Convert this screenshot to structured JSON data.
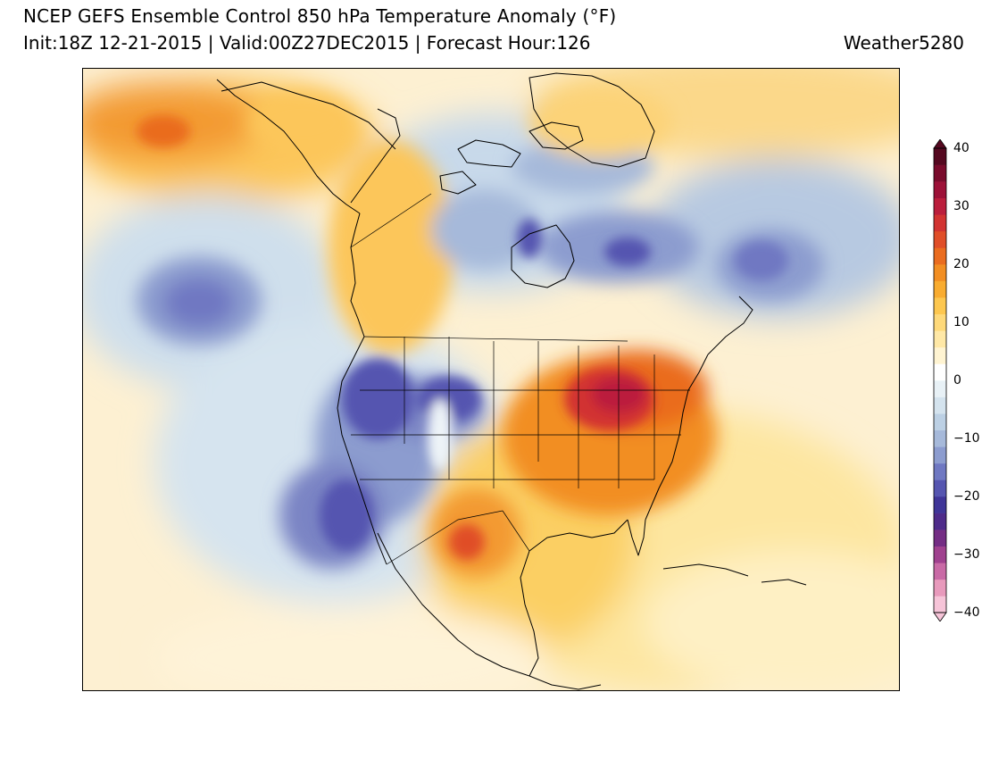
{
  "header": {
    "title": "NCEP GEFS Ensemble Control 850 hPa Temperature Anomaly (°F)",
    "subtitle": "Init:18Z 12-21-2015 | Valid:00Z27DEC2015 | Forecast Hour:126",
    "credit": "Weather5280"
  },
  "colorbar": {
    "labels": [
      "40",
      "30",
      "20",
      "10",
      "0",
      "−10",
      "−20",
      "−30",
      "−40"
    ],
    "colors": [
      "#f6c4d8",
      "#e89abc",
      "#c96aa6",
      "#a0418f",
      "#742d84",
      "#4e2b8a",
      "#3f3598",
      "#5555b0",
      "#6f78c2",
      "#8c9ccf",
      "#a6b9da",
      "#bcd0e4",
      "#d4e3ee",
      "#e8f1f6",
      "#ffffff",
      "#fff4d2",
      "#ffe8a6",
      "#fed97a",
      "#fdc74f",
      "#f9ac30",
      "#f28e22",
      "#ea6c1f",
      "#e04e28",
      "#d23331",
      "#bb1e3c",
      "#9d1138",
      "#7a0b2c",
      "#550820"
    ]
  },
  "map": {
    "palette": {
      "warm_strong": "#d2334a",
      "warm": "#f08a24",
      "warm_light": "#fcd06a",
      "neutral": "#fdf4dc",
      "cool_light": "#d4e3ee",
      "cool": "#8c9ccf",
      "cool_strong": "#4e2b8a"
    }
  }
}
